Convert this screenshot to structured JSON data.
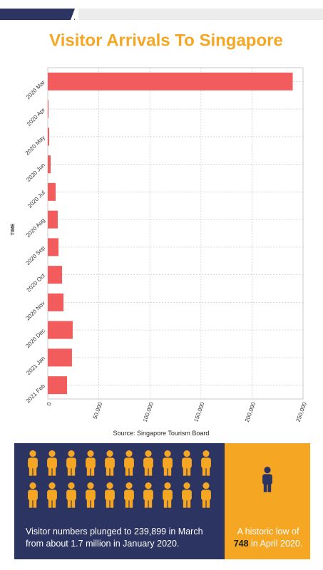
{
  "chart_data": {
    "type": "bar",
    "orientation": "horizontal",
    "title": "Visitor Arrivals To Singapore",
    "y_label": "TIME",
    "source": "Source: Singapore Tourism Board",
    "categories": [
      "2020 Mar",
      "2020 Apr",
      "2020 May",
      "2020 Jun",
      "2020 Jul",
      "2020 Aug",
      "2020 Sep",
      "2020 Oct",
      "2020 Nov",
      "2020 Dec",
      "2021 Jan",
      "2021 Feb"
    ],
    "values": [
      239899,
      748,
      1400,
      2800,
      7700,
      9800,
      10500,
      14000,
      15400,
      24400,
      23700,
      18900
    ],
    "color": "#f25c5c",
    "xlim": [
      0,
      250000
    ],
    "xticks": [
      0,
      {
        "value": 50000,
        "label": "50,000"
      },
      {
        "value": 100000,
        "label": "100,000"
      },
      {
        "value": 150000,
        "label": "150,000"
      },
      {
        "value": 200000,
        "label": "200,000"
      },
      {
        "value": 250000,
        "label": "250,000"
      }
    ],
    "grid": true
  },
  "callouts": {
    "left": "Visitor numbers plunged to 239,899 in March from about 1.7 million in January 2020.",
    "right": {
      "before": "A historic low of",
      "highlight": "748",
      "after": "in April 2020."
    }
  }
}
